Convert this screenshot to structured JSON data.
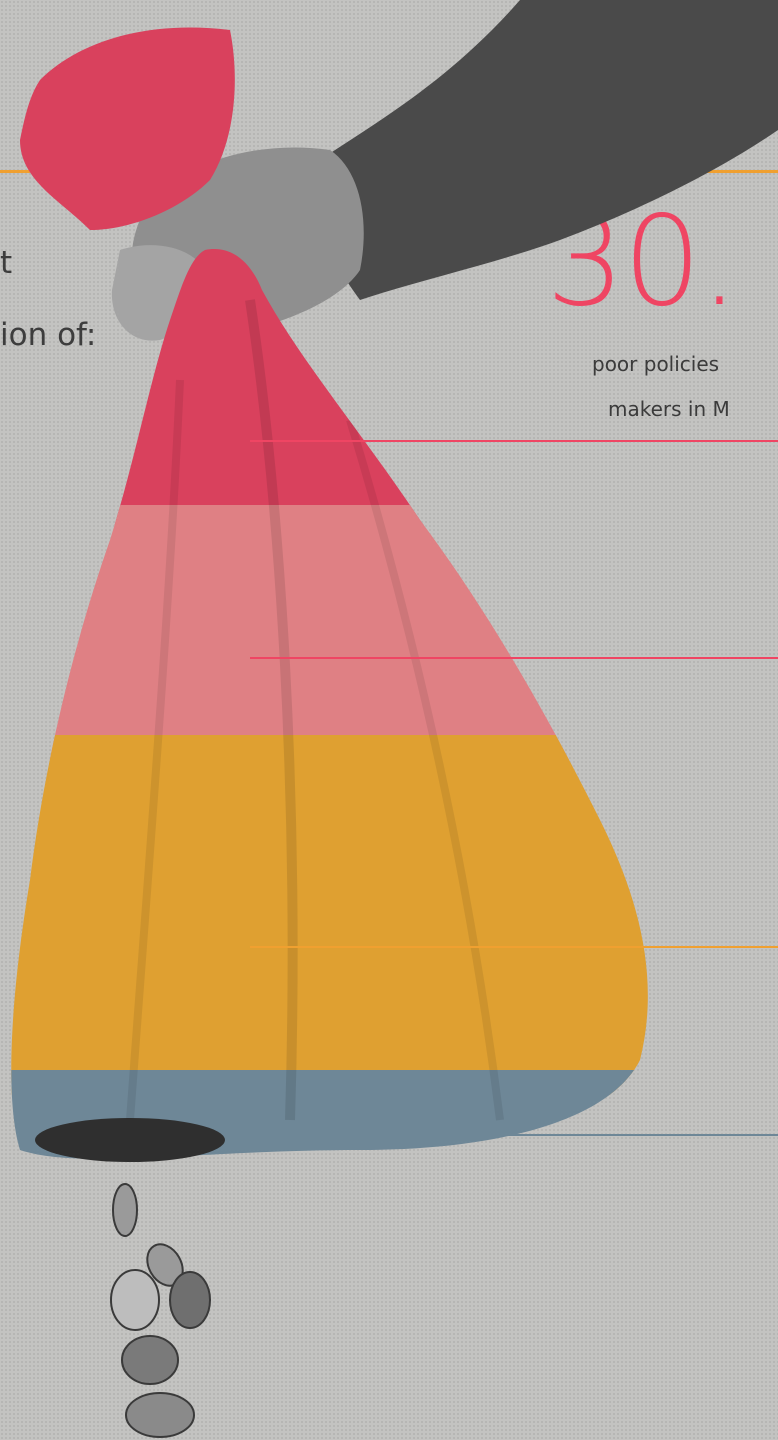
{
  "left_text": {
    "line1": "t",
    "line2": "ion of:"
  },
  "stat": {
    "value": "30.",
    "caption_line1": "poor policies",
    "caption_line2": "makers in M"
  },
  "colors": {
    "accent_orange": "#f0a030",
    "accent_pink": "#ef4563",
    "bag_red": "#d9415d",
    "bag_pink": "#df8084",
    "bag_yellow": "#dfa031",
    "bag_slate": "#6e8797"
  }
}
